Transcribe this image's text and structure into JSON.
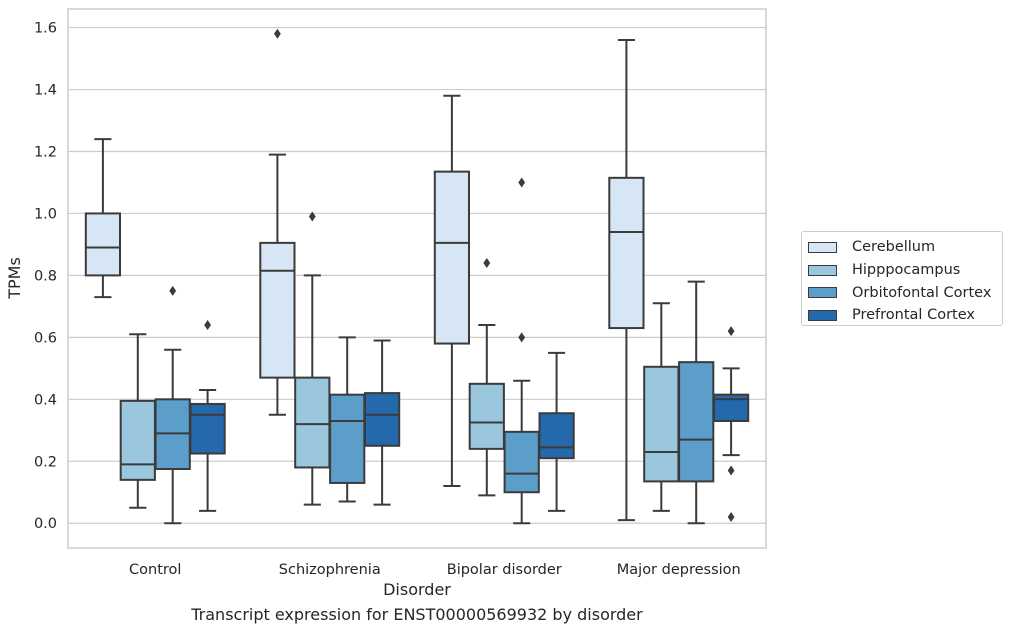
{
  "chart_data": {
    "type": "box",
    "title": "",
    "xlabel": "Disorder",
    "ylabel": "TPMs",
    "caption": "Transcript expression for ENST00000569932 by disorder",
    "categories": [
      "Control",
      "Schizophrenia",
      "Bipolar disorder",
      "Major depression"
    ],
    "ylim": [
      -0.08,
      1.66
    ],
    "yticks": [
      "0.0",
      "0.2",
      "0.4",
      "0.6",
      "0.8",
      "1.0",
      "1.2",
      "1.4",
      "1.6"
    ],
    "grid": true,
    "legend_position": "right",
    "series": [
      {
        "name": "Cerebellum",
        "color": "#d6e6f4",
        "boxes": [
          {
            "whislo": 0.73,
            "q1": 0.8,
            "med": 0.89,
            "q3": 1.0,
            "whishi": 1.24,
            "fliers": []
          },
          {
            "whislo": 0.35,
            "q1": 0.47,
            "med": 0.815,
            "q3": 0.905,
            "whishi": 1.19,
            "fliers": [
              1.58
            ]
          },
          {
            "whislo": 0.12,
            "q1": 0.58,
            "med": 0.905,
            "q3": 1.135,
            "whishi": 1.38,
            "fliers": []
          },
          {
            "whislo": 0.01,
            "q1": 0.63,
            "med": 0.94,
            "q3": 1.115,
            "whishi": 1.56,
            "fliers": []
          }
        ]
      },
      {
        "name": "Hipppocampus",
        "color": "#9bc7de",
        "boxes": [
          {
            "whislo": 0.05,
            "q1": 0.14,
            "med": 0.19,
            "q3": 0.395,
            "whishi": 0.61,
            "fliers": []
          },
          {
            "whislo": 0.06,
            "q1": 0.18,
            "med": 0.32,
            "q3": 0.47,
            "whishi": 0.8,
            "fliers": [
              0.99
            ]
          },
          {
            "whislo": 0.09,
            "q1": 0.24,
            "med": 0.325,
            "q3": 0.45,
            "whishi": 0.64,
            "fliers": [
              0.84
            ]
          },
          {
            "whislo": 0.04,
            "q1": 0.135,
            "med": 0.23,
            "q3": 0.505,
            "whishi": 0.71,
            "fliers": []
          }
        ]
      },
      {
        "name": "Orbitofontal Cortex",
        "color": "#5a9ec9",
        "boxes": [
          {
            "whislo": 0.0,
            "q1": 0.175,
            "med": 0.29,
            "q3": 0.4,
            "whishi": 0.56,
            "fliers": [
              0.75
            ]
          },
          {
            "whislo": 0.07,
            "q1": 0.13,
            "med": 0.33,
            "q3": 0.415,
            "whishi": 0.6,
            "fliers": []
          },
          {
            "whislo": 0.0,
            "q1": 0.1,
            "med": 0.16,
            "q3": 0.295,
            "whishi": 0.46,
            "fliers": [
              0.6,
              1.1
            ]
          },
          {
            "whislo": 0.0,
            "q1": 0.135,
            "med": 0.27,
            "q3": 0.52,
            "whishi": 0.78,
            "fliers": []
          }
        ]
      },
      {
        "name": "Prefrontal Cortex",
        "color": "#2469ac",
        "boxes": [
          {
            "whislo": 0.04,
            "q1": 0.225,
            "med": 0.35,
            "q3": 0.385,
            "whishi": 0.43,
            "fliers": [
              0.64
            ]
          },
          {
            "whislo": 0.06,
            "q1": 0.25,
            "med": 0.35,
            "q3": 0.42,
            "whishi": 0.59,
            "fliers": []
          },
          {
            "whislo": 0.04,
            "q1": 0.21,
            "med": 0.245,
            "q3": 0.355,
            "whishi": 0.55,
            "fliers": []
          },
          {
            "whislo": 0.22,
            "q1": 0.33,
            "med": 0.4,
            "q3": 0.415,
            "whishi": 0.5,
            "fliers": [
              0.62,
              0.17,
              0.02
            ]
          }
        ]
      }
    ]
  }
}
